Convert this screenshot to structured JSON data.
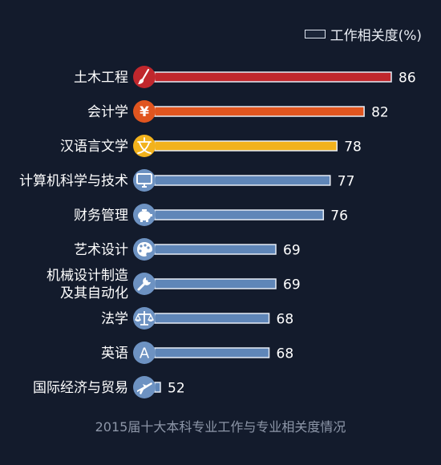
{
  "chart_data": {
    "type": "bar",
    "orientation": "horizontal",
    "title": "2015届十大本科专业工作与专业相关度情况",
    "legend": {
      "label": "工作相关度(%)",
      "placement": "top-right"
    },
    "categories": [
      "土木工程",
      "会计学",
      "汉语言文学",
      "计算机科学与技术",
      "财务管理",
      "艺术设计",
      "机械设计制造\n及其自动化",
      "法学",
      "英语",
      "国际经济与贸易"
    ],
    "values": [
      86,
      82,
      78,
      77,
      76,
      69,
      69,
      68,
      68,
      52
    ],
    "icons": [
      "brush-icon",
      "yen-icon",
      "wen-character-icon",
      "monitor-icon",
      "piggy-bank-icon",
      "palette-icon",
      "wrench-icon",
      "scales-icon",
      "letter-a-icon",
      "airplane-icon"
    ],
    "bar_colors": [
      "#c0272d",
      "#e0551f",
      "#f2b21c",
      "#5f86b8",
      "#5f86b8",
      "#5f86b8",
      "#5f86b8",
      "#5f86b8",
      "#5f86b8",
      "#5f86b8"
    ],
    "icon_colors": [
      "#c0272d",
      "#e0551f",
      "#f2b21c",
      "#6d92c2",
      "#6d92c2",
      "#6d92c2",
      "#6d92c2",
      "#6d92c2",
      "#6d92c2",
      "#6d92c2"
    ],
    "xlim": [
      52,
      86
    ],
    "grid": false,
    "data_labels": true
  }
}
